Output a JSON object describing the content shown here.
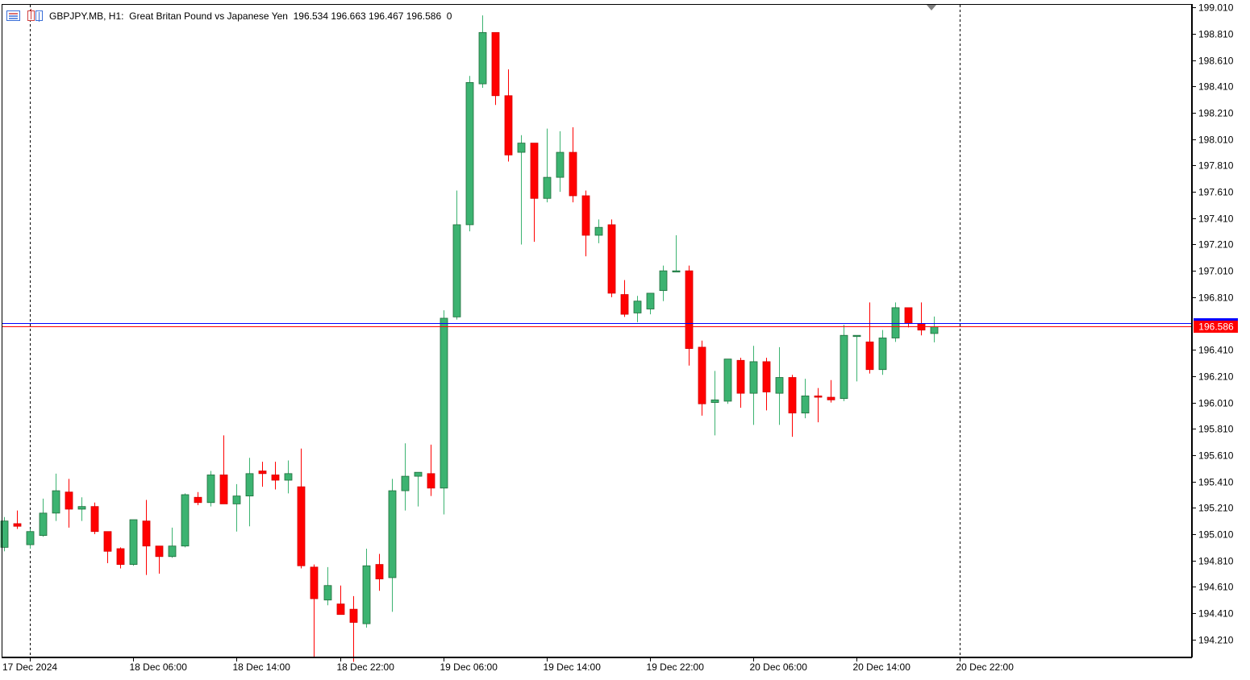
{
  "header": {
    "symbol_line": "GBPJPY.MB, H1:  Great Britan Pound vs Japanese Yen  196.534 196.663 196.467 196.586  0"
  },
  "price_tags": {
    "bid": "196.586"
  },
  "colors": {
    "bull": "#3cb371",
    "bear": "#ff0000",
    "bid_line": "#ff0000",
    "ask_line": "#0000ff",
    "grid_sep": "#000000",
    "text": "#000000"
  },
  "icons": [
    "window-list-icon",
    "chart-history-icon"
  ],
  "chart_data": {
    "type": "candlestick",
    "timeframe": "H1",
    "symbol": "GBPJPY.MB",
    "y_ticks": [
      "199.010",
      "198.810",
      "198.610",
      "198.410",
      "198.210",
      "198.010",
      "197.810",
      "197.610",
      "197.410",
      "197.210",
      "197.010",
      "196.810",
      "196.410",
      "196.210",
      "196.010",
      "195.810",
      "195.610",
      "195.410",
      "195.210",
      "195.010",
      "194.810",
      "194.610",
      "194.410",
      "194.210"
    ],
    "x_ticks": [
      "17 Dec 2024",
      "18 Dec 06:00",
      "18 Dec 14:00",
      "18 Dec 22:00",
      "19 Dec 06:00",
      "19 Dec 14:00",
      "19 Dec 22:00",
      "20 Dec 06:00",
      "20 Dec 14:00",
      "20 Dec 22:00"
    ],
    "ylim": [
      194.08,
      199.03
    ],
    "bid": 196.586,
    "ask": 196.614,
    "candles": [
      {
        "o": 194.91,
        "h": 195.14,
        "l": 194.88,
        "c": 195.11
      },
      {
        "o": 195.09,
        "h": 195.19,
        "l": 195.05,
        "c": 195.07
      },
      {
        "o": 194.93,
        "h": 195.05,
        "l": 194.9,
        "c": 195.03
      },
      {
        "o": 195.0,
        "h": 195.28,
        "l": 194.99,
        "c": 195.17
      },
      {
        "o": 195.17,
        "h": 195.47,
        "l": 195.11,
        "c": 195.34
      },
      {
        "o": 195.33,
        "h": 195.43,
        "l": 195.06,
        "c": 195.2
      },
      {
        "o": 195.2,
        "h": 195.29,
        "l": 195.11,
        "c": 195.22
      },
      {
        "o": 195.22,
        "h": 195.25,
        "l": 195.01,
        "c": 195.03
      },
      {
        "o": 195.03,
        "h": 195.03,
        "l": 194.79,
        "c": 194.88
      },
      {
        "o": 194.9,
        "h": 194.91,
        "l": 194.75,
        "c": 194.78
      },
      {
        "o": 194.78,
        "h": 195.12,
        "l": 194.77,
        "c": 195.12
      },
      {
        "o": 195.11,
        "h": 195.27,
        "l": 194.7,
        "c": 194.92
      },
      {
        "o": 194.92,
        "h": 194.92,
        "l": 194.71,
        "c": 194.84
      },
      {
        "o": 194.84,
        "h": 195.06,
        "l": 194.83,
        "c": 194.92
      },
      {
        "o": 194.92,
        "h": 195.32,
        "l": 194.91,
        "c": 195.31
      },
      {
        "o": 195.29,
        "h": 195.33,
        "l": 195.23,
        "c": 195.25
      },
      {
        "o": 195.25,
        "h": 195.49,
        "l": 195.22,
        "c": 195.46
      },
      {
        "o": 195.46,
        "h": 195.76,
        "l": 195.24,
        "c": 195.24
      },
      {
        "o": 195.24,
        "h": 195.39,
        "l": 195.03,
        "c": 195.3
      },
      {
        "o": 195.3,
        "h": 195.59,
        "l": 195.07,
        "c": 195.47
      },
      {
        "o": 195.49,
        "h": 195.56,
        "l": 195.37,
        "c": 195.47
      },
      {
        "o": 195.46,
        "h": 195.56,
        "l": 195.35,
        "c": 195.42
      },
      {
        "o": 195.42,
        "h": 195.57,
        "l": 195.32,
        "c": 195.47
      },
      {
        "o": 195.37,
        "h": 195.66,
        "l": 194.75,
        "c": 194.77
      },
      {
        "o": 194.76,
        "h": 194.78,
        "l": 194.07,
        "c": 194.52
      },
      {
        "o": 194.51,
        "h": 194.76,
        "l": 194.47,
        "c": 194.62
      },
      {
        "o": 194.48,
        "h": 194.62,
        "l": 194.4,
        "c": 194.4
      },
      {
        "o": 194.44,
        "h": 194.54,
        "l": 194.04,
        "c": 194.34
      },
      {
        "o": 194.33,
        "h": 194.9,
        "l": 194.3,
        "c": 194.77
      },
      {
        "o": 194.78,
        "h": 194.86,
        "l": 194.58,
        "c": 194.67
      },
      {
        "o": 194.68,
        "h": 195.43,
        "l": 194.42,
        "c": 195.34
      },
      {
        "o": 195.34,
        "h": 195.7,
        "l": 195.19,
        "c": 195.45
      },
      {
        "o": 195.45,
        "h": 195.48,
        "l": 195.22,
        "c": 195.48
      },
      {
        "o": 195.47,
        "h": 195.69,
        "l": 195.3,
        "c": 195.36
      },
      {
        "o": 195.36,
        "h": 196.71,
        "l": 195.16,
        "c": 196.65
      },
      {
        "o": 196.66,
        "h": 197.62,
        "l": 196.64,
        "c": 197.36
      },
      {
        "o": 197.36,
        "h": 198.49,
        "l": 197.31,
        "c": 198.44
      },
      {
        "o": 198.43,
        "h": 198.95,
        "l": 198.4,
        "c": 198.82
      },
      {
        "o": 198.82,
        "h": 198.82,
        "l": 198.27,
        "c": 198.34
      },
      {
        "o": 198.34,
        "h": 198.54,
        "l": 197.84,
        "c": 197.89
      },
      {
        "o": 197.91,
        "h": 198.04,
        "l": 197.21,
        "c": 197.98
      },
      {
        "o": 197.98,
        "h": 197.98,
        "l": 197.23,
        "c": 197.56
      },
      {
        "o": 197.56,
        "h": 198.09,
        "l": 197.53,
        "c": 197.72
      },
      {
        "o": 197.72,
        "h": 198.07,
        "l": 197.61,
        "c": 197.91
      },
      {
        "o": 197.91,
        "h": 198.1,
        "l": 197.53,
        "c": 197.58
      },
      {
        "o": 197.58,
        "h": 197.62,
        "l": 197.12,
        "c": 197.28
      },
      {
        "o": 197.28,
        "h": 197.4,
        "l": 197.22,
        "c": 197.34
      },
      {
        "o": 197.36,
        "h": 197.4,
        "l": 196.81,
        "c": 196.84
      },
      {
        "o": 196.83,
        "h": 196.94,
        "l": 196.66,
        "c": 196.68
      },
      {
        "o": 196.69,
        "h": 196.82,
        "l": 196.62,
        "c": 196.78
      },
      {
        "o": 196.72,
        "h": 196.84,
        "l": 196.68,
        "c": 196.84
      },
      {
        "o": 196.86,
        "h": 197.05,
        "l": 196.78,
        "c": 197.01
      },
      {
        "o": 197.01,
        "h": 197.28,
        "l": 197.0,
        "c": 197.01
      },
      {
        "o": 197.01,
        "h": 197.05,
        "l": 196.29,
        "c": 196.42
      },
      {
        "o": 196.43,
        "h": 196.48,
        "l": 195.91,
        "c": 196.0
      },
      {
        "o": 196.01,
        "h": 196.25,
        "l": 195.76,
        "c": 196.03
      },
      {
        "o": 196.02,
        "h": 196.34,
        "l": 196.0,
        "c": 196.34
      },
      {
        "o": 196.33,
        "h": 196.35,
        "l": 195.97,
        "c": 196.08
      },
      {
        "o": 196.08,
        "h": 196.44,
        "l": 195.84,
        "c": 196.32
      },
      {
        "o": 196.32,
        "h": 196.35,
        "l": 195.95,
        "c": 196.09
      },
      {
        "o": 196.08,
        "h": 196.43,
        "l": 195.84,
        "c": 196.2
      },
      {
        "o": 196.2,
        "h": 196.22,
        "l": 195.75,
        "c": 195.93
      },
      {
        "o": 195.93,
        "h": 196.19,
        "l": 195.89,
        "c": 196.06
      },
      {
        "o": 196.06,
        "h": 196.12,
        "l": 195.86,
        "c": 196.05
      },
      {
        "o": 196.05,
        "h": 196.18,
        "l": 196.01,
        "c": 196.03
      },
      {
        "o": 196.04,
        "h": 196.6,
        "l": 196.02,
        "c": 196.52
      },
      {
        "o": 196.52,
        "h": 196.52,
        "l": 196.17,
        "c": 196.52
      },
      {
        "o": 196.47,
        "h": 196.77,
        "l": 196.23,
        "c": 196.26
      },
      {
        "o": 196.26,
        "h": 196.56,
        "l": 196.22,
        "c": 196.5
      },
      {
        "o": 196.5,
        "h": 196.77,
        "l": 196.47,
        "c": 196.73
      },
      {
        "o": 196.73,
        "h": 196.73,
        "l": 196.58,
        "c": 196.61
      },
      {
        "o": 196.61,
        "h": 196.77,
        "l": 196.52,
        "c": 196.56
      },
      {
        "o": 196.534,
        "h": 196.663,
        "l": 196.467,
        "c": 196.586
      }
    ]
  }
}
